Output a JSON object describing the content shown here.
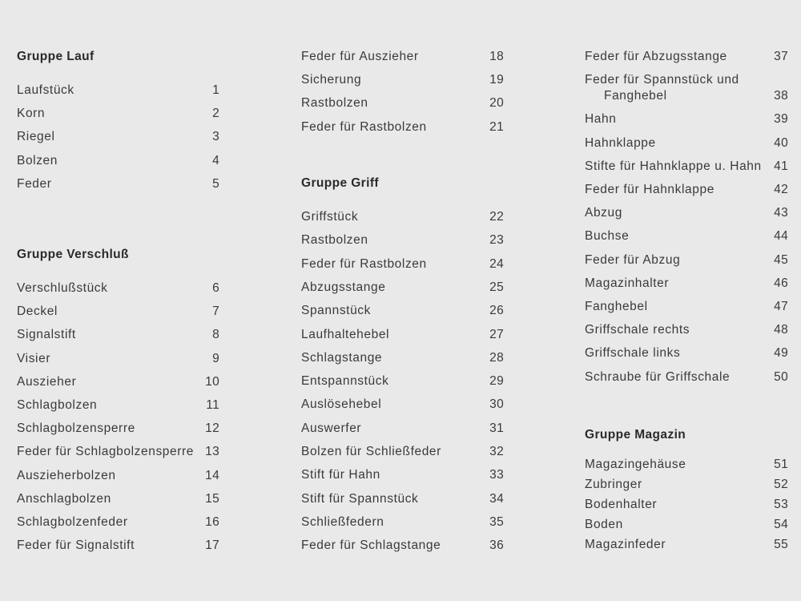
{
  "columns": [
    {
      "blocks": [
        {
          "heading": "Gruppe Lauf",
          "items": [
            {
              "name": "Laufstück",
              "no": "1"
            },
            {
              "name": "Korn",
              "no": "2"
            },
            {
              "name": "Riegel",
              "no": "3"
            },
            {
              "name": "Bolzen",
              "no": "4"
            },
            {
              "name": "Feder",
              "no": "5"
            }
          ]
        },
        {
          "heading": "Gruppe Verschluß",
          "items": [
            {
              "name": "Verschlußstück",
              "no": "6"
            },
            {
              "name": "Deckel",
              "no": "7"
            },
            {
              "name": "Signalstift",
              "no": "8"
            },
            {
              "name": "Visier",
              "no": "9"
            },
            {
              "name": "Auszieher",
              "no": "10"
            },
            {
              "name": "Schlagbolzen",
              "no": "11"
            },
            {
              "name": "Schlagbolzensperre",
              "no": "12"
            },
            {
              "name": "Feder für Schlagbolzensperre",
              "no": "13"
            },
            {
              "name": "Auszieherbolzen",
              "no": "14"
            },
            {
              "name": "Anschlagbolzen",
              "no": "15"
            },
            {
              "name": "Schlagbolzenfeder",
              "no": "16"
            },
            {
              "name": "Feder für Signalstift",
              "no": "17"
            }
          ]
        }
      ]
    },
    {
      "blocks": [
        {
          "heading": "",
          "items": [
            {
              "name": "Feder für Auszieher",
              "no": "18"
            },
            {
              "name": "Sicherung",
              "no": "19"
            },
            {
              "name": "Rastbolzen",
              "no": "20"
            },
            {
              "name": "Feder für Rastbolzen",
              "no": "21"
            }
          ]
        },
        {
          "heading": "Gruppe Griff",
          "items": [
            {
              "name": "Griffstück",
              "no": "22"
            },
            {
              "name": "Rastbolzen",
              "no": "23"
            },
            {
              "name": "Feder für Rastbolzen",
              "no": "24"
            },
            {
              "name": "Abzugsstange",
              "no": "25"
            },
            {
              "name": "Spannstück",
              "no": "26"
            },
            {
              "name": "Laufhaltehebel",
              "no": "27"
            },
            {
              "name": "Schlagstange",
              "no": "28"
            },
            {
              "name": "Entspannstück",
              "no": "29"
            },
            {
              "name": "Auslösehebel",
              "no": "30"
            },
            {
              "name": "Auswerfer",
              "no": "31"
            },
            {
              "name": "Bolzen für Schließfeder",
              "no": "32"
            },
            {
              "name": "Stift für Hahn",
              "no": "33"
            },
            {
              "name": "Stift für Spannstück",
              "no": "34"
            },
            {
              "name": "Schließfedern",
              "no": "35"
            },
            {
              "name": "Feder für Schlagstange",
              "no": "36"
            }
          ]
        }
      ]
    },
    {
      "blocks": [
        {
          "heading": "",
          "items": [
            {
              "name": "Feder für Abzugsstange",
              "no": "37"
            },
            {
              "name": "Feder für Spannstück und",
              "name2": "Fanghebel",
              "no": "38"
            },
            {
              "name": "Hahn",
              "no": "39"
            },
            {
              "name": "Hahnklappe",
              "no": "40"
            },
            {
              "name": "Stifte für Hahnklappe u. Hahn",
              "no": "41"
            },
            {
              "name": "Feder für Hahnklappe",
              "no": "42"
            },
            {
              "name": "Abzug",
              "no": "43"
            },
            {
              "name": "Buchse",
              "no": "44"
            },
            {
              "name": "Feder für Abzug",
              "no": "45"
            },
            {
              "name": "Magazinhalter",
              "no": "46"
            },
            {
              "name": "Fanghebel",
              "no": "47"
            },
            {
              "name": "Griffschale rechts",
              "no": "48"
            },
            {
              "name": "Griffschale links",
              "no": "49"
            },
            {
              "name": "Schraube für Griffschale",
              "no": "50"
            }
          ]
        },
        {
          "heading": "Gruppe Magazin",
          "items": [
            {
              "name": "Magazingehäuse",
              "no": "51"
            },
            {
              "name": "Zubringer",
              "no": "52"
            },
            {
              "name": "Bodenhalter",
              "no": "53"
            },
            {
              "name": "Boden",
              "no": "54"
            },
            {
              "name": "Magazinfeder",
              "no": "55"
            }
          ]
        }
      ]
    }
  ]
}
